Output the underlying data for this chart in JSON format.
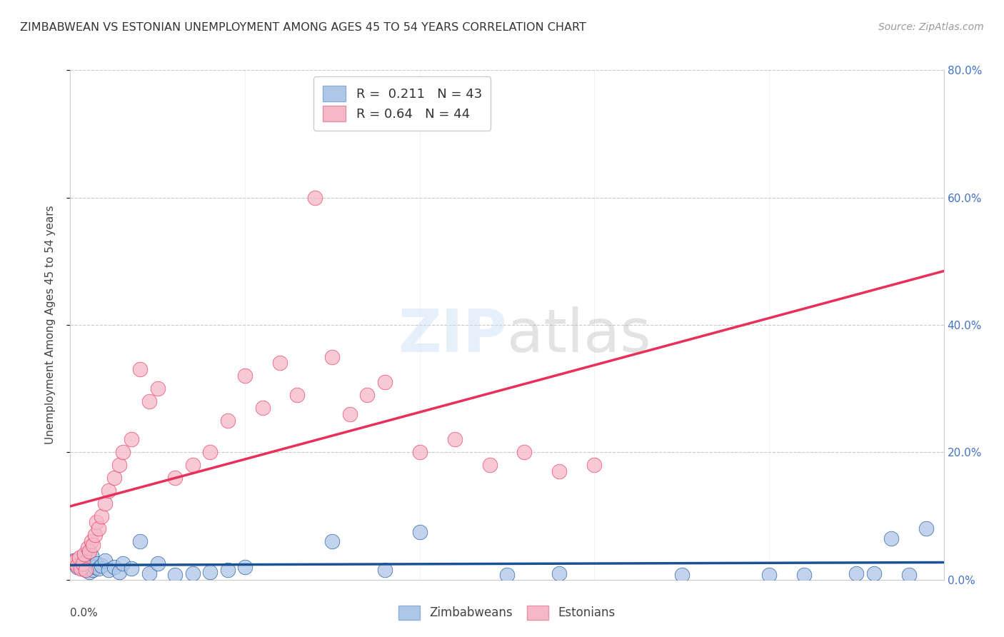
{
  "title": "ZIMBABWEAN VS ESTONIAN UNEMPLOYMENT AMONG AGES 45 TO 54 YEARS CORRELATION CHART",
  "source": "Source: ZipAtlas.com",
  "ylabel": "Unemployment Among Ages 45 to 54 years",
  "legend_zim": "Zimbabweans",
  "legend_est": "Estonians",
  "R_zim": 0.211,
  "N_zim": 43,
  "R_est": 0.64,
  "N_est": 44,
  "zim_color": "#aec6e8",
  "est_color": "#f5b8c8",
  "zim_line_color": "#1a5296",
  "est_line_color": "#e8305a",
  "xmin": 0.0,
  "xmax": 0.05,
  "ymin": 0.0,
  "ymax": 0.8,
  "zim_scatter_x": [
    0.0002,
    0.0003,
    0.0004,
    0.0005,
    0.0006,
    0.0007,
    0.0008,
    0.0009,
    0.001,
    0.0011,
    0.0012,
    0.0013,
    0.0014,
    0.0015,
    0.0016,
    0.0018,
    0.002,
    0.0022,
    0.0025,
    0.0028,
    0.003,
    0.0035,
    0.004,
    0.0045,
    0.005,
    0.006,
    0.007,
    0.008,
    0.009,
    0.01,
    0.015,
    0.018,
    0.02,
    0.025,
    0.028,
    0.035,
    0.04,
    0.042,
    0.045,
    0.046,
    0.047,
    0.048,
    0.049
  ],
  "zim_scatter_y": [
    0.03,
    0.025,
    0.02,
    0.028,
    0.022,
    0.018,
    0.035,
    0.015,
    0.04,
    0.012,
    0.038,
    0.015,
    0.02,
    0.025,
    0.018,
    0.022,
    0.03,
    0.015,
    0.02,
    0.012,
    0.025,
    0.018,
    0.06,
    0.01,
    0.025,
    0.008,
    0.01,
    0.012,
    0.015,
    0.02,
    0.06,
    0.015,
    0.075,
    0.008,
    0.01,
    0.008,
    0.008,
    0.008,
    0.01,
    0.01,
    0.065,
    0.008,
    0.08
  ],
  "est_scatter_x": [
    0.0002,
    0.0003,
    0.0004,
    0.0005,
    0.0006,
    0.0007,
    0.0008,
    0.0009,
    0.001,
    0.0011,
    0.0012,
    0.0013,
    0.0014,
    0.0015,
    0.0016,
    0.0018,
    0.002,
    0.0022,
    0.0025,
    0.0028,
    0.003,
    0.0035,
    0.004,
    0.0045,
    0.005,
    0.006,
    0.007,
    0.008,
    0.009,
    0.01,
    0.011,
    0.012,
    0.013,
    0.014,
    0.015,
    0.016,
    0.017,
    0.018,
    0.02,
    0.022,
    0.024,
    0.026,
    0.028,
    0.03
  ],
  "est_scatter_y": [
    0.028,
    0.03,
    0.022,
    0.035,
    0.018,
    0.025,
    0.04,
    0.015,
    0.05,
    0.045,
    0.06,
    0.055,
    0.07,
    0.09,
    0.08,
    0.1,
    0.12,
    0.14,
    0.16,
    0.18,
    0.2,
    0.22,
    0.33,
    0.28,
    0.3,
    0.16,
    0.18,
    0.2,
    0.25,
    0.32,
    0.27,
    0.34,
    0.29,
    0.6,
    0.35,
    0.26,
    0.29,
    0.31,
    0.2,
    0.22,
    0.18,
    0.2,
    0.17,
    0.18
  ]
}
